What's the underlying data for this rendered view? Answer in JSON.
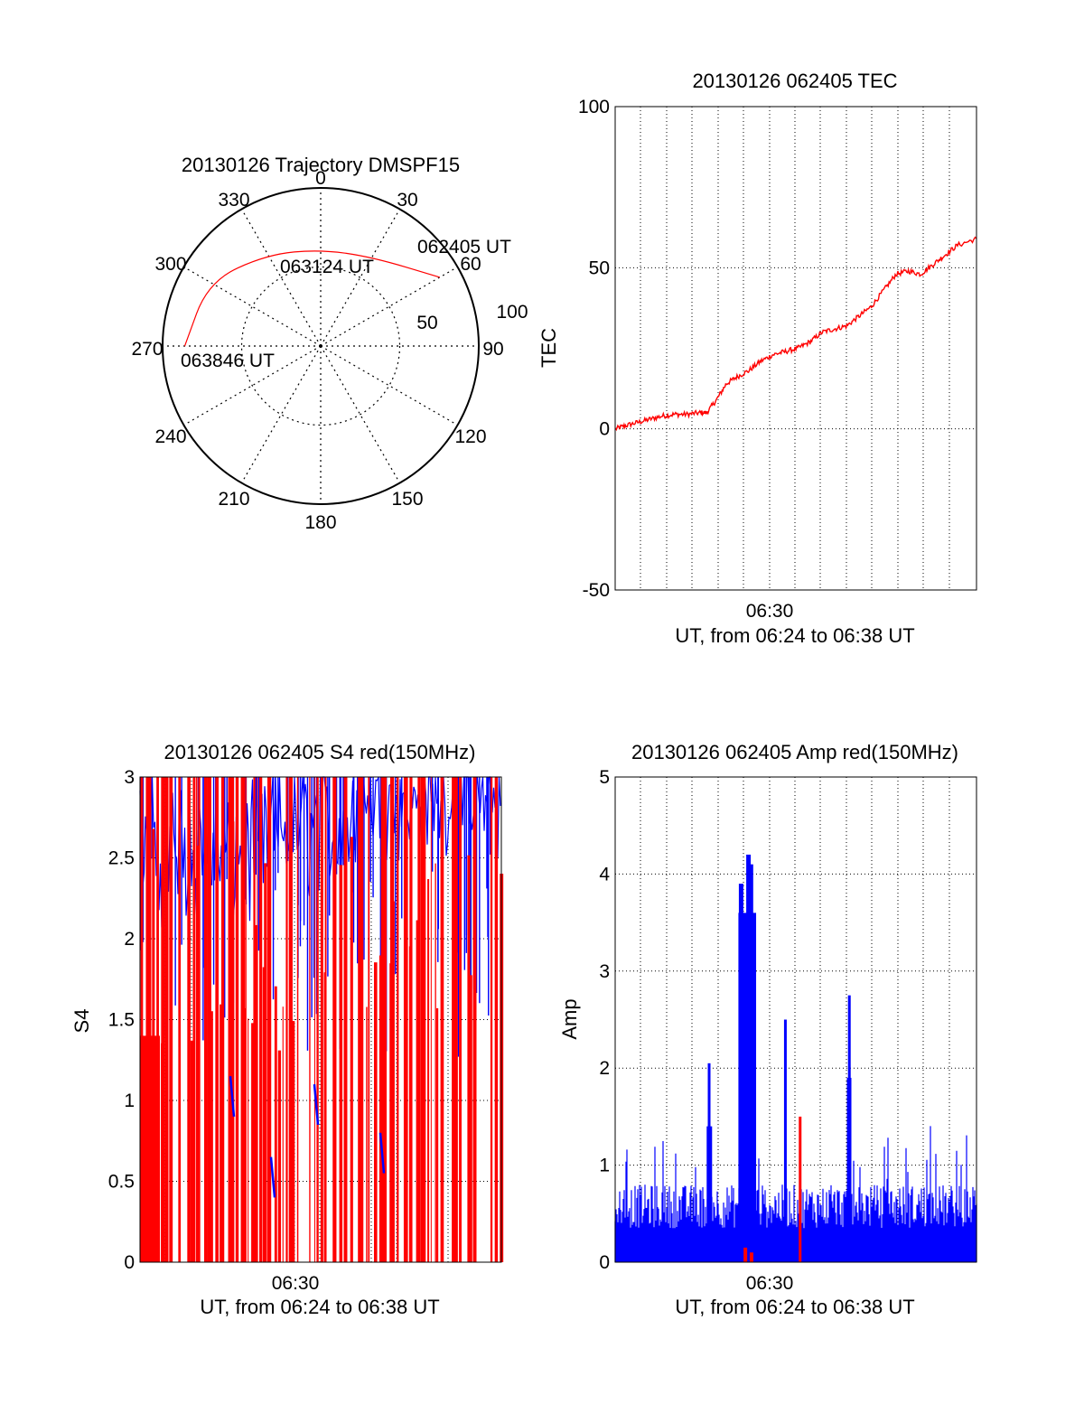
{
  "colors": {
    "red": "#ff0000",
    "blue": "#0000ff",
    "axis": "#000000",
    "grid": "#000000"
  },
  "chart_data": [
    {
      "type": "polar",
      "title": "20130126 Trajectory DMSPF15",
      "angle_labels": [
        "0",
        "30",
        "60",
        "90",
        "120",
        "150",
        "180",
        "210",
        "240",
        "270",
        "300",
        "330"
      ],
      "radial_labels": [
        "50",
        "100"
      ],
      "radial_range": [
        0,
        100
      ],
      "grid": true,
      "trajectory": {
        "color": "#ff0000",
        "start": {
          "azimuth": 60,
          "elevation_radius": 87
        },
        "end": {
          "azimuth": 270,
          "elevation_radius": 87
        },
        "points": [
          {
            "azimuth": 60,
            "r": 87
          },
          {
            "azimuth": 30,
            "r": 65
          },
          {
            "azimuth": 0,
            "r": 61
          },
          {
            "azimuth": -30,
            "r": 67
          },
          {
            "azimuth": -60,
            "r": 82
          },
          {
            "azimuth": -90,
            "r": 86
          }
        ]
      },
      "annotations": [
        "062405 UT",
        "063124 UT",
        "063846 UT"
      ]
    },
    {
      "type": "line",
      "title": "20130126 062405 TEC",
      "ylabel": "TEC",
      "xlabel": "UT, from 06:24 to 06:38 UT",
      "xtick_labels": [
        "06:30"
      ],
      "yticks": [
        "100",
        "50",
        "0",
        "-50"
      ],
      "ylim": [
        -50,
        100
      ],
      "xlim_minutes": [
        24.08,
        38.77
      ],
      "grid": true,
      "series": [
        {
          "color": "#ff0000",
          "points": [
            [
              24.1,
              0
            ],
            [
              24.5,
              1
            ],
            [
              25,
              2
            ],
            [
              25.5,
              3
            ],
            [
              26,
              4
            ],
            [
              26.5,
              4.5
            ],
            [
              27,
              4.5
            ],
            [
              27.5,
              5
            ],
            [
              27.8,
              5
            ],
            [
              28.2,
              9
            ],
            [
              28.6,
              14
            ],
            [
              29,
              16
            ],
            [
              29.5,
              18
            ],
            [
              30,
              21
            ],
            [
              30.5,
              23
            ],
            [
              31,
              24
            ],
            [
              31.5,
              25
            ],
            [
              32,
              27
            ],
            [
              32.5,
              30
            ],
            [
              33,
              31
            ],
            [
              33.5,
              32
            ],
            [
              34,
              35
            ],
            [
              34.5,
              38
            ],
            [
              35,
              43
            ],
            [
              35.5,
              48
            ],
            [
              36,
              49
            ],
            [
              36.5,
              48
            ],
            [
              37,
              51
            ],
            [
              37.5,
              54
            ],
            [
              38,
              57
            ],
            [
              38.77,
              59
            ]
          ]
        }
      ]
    },
    {
      "type": "line",
      "title": "20130126 062405 S4 red(150MHz)",
      "ylabel": "S4",
      "xlabel": "UT, from 06:24 to 06:38 UT",
      "xtick_labels": [
        "06:30"
      ],
      "yticks": [
        "3",
        "2.5",
        "2",
        "1.5",
        "1",
        "0.5",
        "0"
      ],
      "ylim": [
        0,
        3
      ],
      "xlim_minutes": [
        24.08,
        38.77
      ],
      "grid": true,
      "series_colors": [
        "#ff0000",
        "#0000ff"
      ]
    },
    {
      "type": "line",
      "title": "20130126 062405 Amp red(150MHz)",
      "ylabel": "Amp",
      "xlabel": "UT, from 06:24 to 06:38 UT",
      "xtick_labels": [
        "06:30"
      ],
      "yticks": [
        "5",
        "4",
        "3",
        "2",
        "1",
        "0"
      ],
      "ylim": [
        0,
        5
      ],
      "xlim_minutes": [
        24.08,
        38.77
      ],
      "grid": true,
      "series_colors": [
        "#0000ff",
        "#ff0000"
      ],
      "peaks": [
        {
          "x": 27.9,
          "y": 2.05
        },
        {
          "x": 29.2,
          "y": 3.9
        },
        {
          "x": 29.5,
          "y": 4.2
        },
        {
          "x": 29.6,
          "y": 4.1
        },
        {
          "x": 31.0,
          "y": 2.5
        },
        {
          "x": 31.6,
          "y": 1.5
        },
        {
          "x": 33.6,
          "y": 2.75
        }
      ]
    }
  ]
}
